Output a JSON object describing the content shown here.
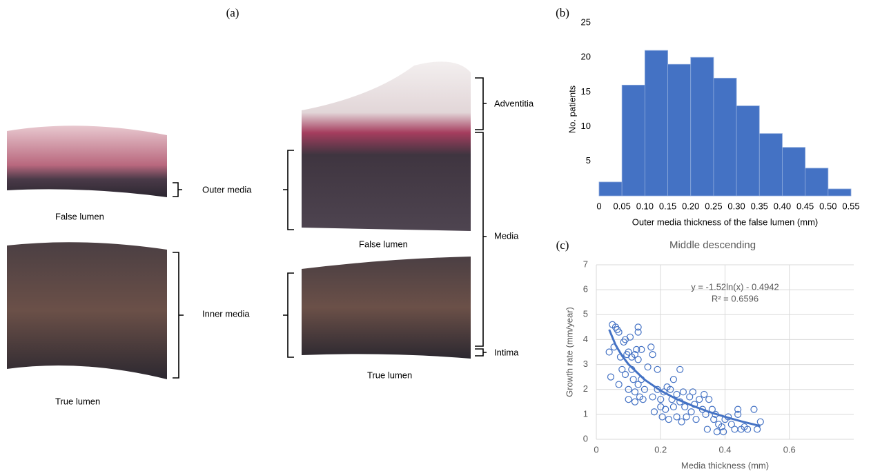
{
  "figure": {
    "panel_a": {
      "label": "(a)",
      "left_top_caption": "False lumen",
      "left_bottom_caption": "True lumen",
      "outer_media": "Outer media",
      "inner_media": "Inner media",
      "adventitia": "Adventitia",
      "media": "Media",
      "intima": "Intima",
      "right_top_caption": "False lumen",
      "right_bottom_caption": "True lumen"
    },
    "panel_b_label": "(b)",
    "panel_c_label": "(c)"
  },
  "chart_data": [
    {
      "type": "histogram",
      "xlabel": "Outer media thickness of the false lumen (mm)",
      "ylabel": "No. patients",
      "bins": [
        0,
        0.05,
        0.1,
        0.15,
        0.2,
        0.25,
        0.3,
        0.35,
        0.4,
        0.45,
        0.5,
        0.55
      ],
      "counts": [
        2,
        16,
        21,
        19,
        20,
        17,
        13,
        9,
        7,
        4,
        1
      ],
      "color": "#4472c4",
      "xlim": [
        0,
        0.55
      ],
      "xticks": [
        0,
        0.05,
        {
          "value": 0.1,
          "label": "0.10"
        },
        0.15,
        {
          "value": 0.2,
          "label": "0.20"
        },
        0.25,
        {
          "value": 0.3,
          "label": "0.30"
        },
        0.35,
        {
          "value": 0.4,
          "label": "0.40"
        },
        0.45,
        {
          "value": 0.5,
          "label": "0.50"
        },
        0.55
      ],
      "ylim": [
        0,
        25
      ],
      "yticks": [
        5,
        10,
        15,
        20,
        25
      ],
      "grid": false
    },
    {
      "type": "scatter",
      "title": "Middle descending",
      "xlabel": "Media thickness (mm)",
      "ylabel": "Growth rate (mm/year)",
      "x": [
        0.04,
        0.045,
        0.05,
        0.055,
        0.06,
        0.065,
        0.07,
        0.07,
        0.075,
        0.08,
        0.085,
        0.09,
        0.09,
        0.095,
        0.1,
        0.1,
        0.1,
        0.105,
        0.11,
        0.11,
        0.115,
        0.12,
        0.12,
        0.12,
        0.125,
        0.13,
        0.13,
        0.13,
        0.13,
        0.135,
        0.14,
        0.14,
        0.145,
        0.15,
        0.16,
        0.17,
        0.175,
        0.175,
        0.18,
        0.19,
        0.19,
        0.2,
        0.2,
        0.205,
        0.21,
        0.215,
        0.22,
        0.225,
        0.23,
        0.235,
        0.24,
        0.24,
        0.25,
        0.25,
        0.26,
        0.26,
        0.265,
        0.27,
        0.275,
        0.28,
        0.29,
        0.295,
        0.3,
        0.305,
        0.31,
        0.32,
        0.33,
        0.335,
        0.34,
        0.345,
        0.35,
        0.36,
        0.365,
        0.37,
        0.375,
        0.38,
        0.39,
        0.395,
        0.4,
        0.41,
        0.42,
        0.43,
        0.44,
        0.44,
        0.45,
        0.46,
        0.47,
        0.49,
        0.5,
        0.51
      ],
      "y": [
        3.5,
        2.5,
        4.6,
        3.7,
        4.5,
        4.4,
        4.3,
        2.2,
        3.3,
        2.8,
        3.9,
        4.0,
        2.6,
        3.4,
        3.5,
        1.6,
        2.0,
        4.1,
        3.3,
        2.8,
        2.4,
        3.4,
        1.9,
        1.5,
        3.6,
        4.5,
        4.3,
        3.2,
        2.2,
        1.7,
        3.6,
        2.4,
        1.6,
        2.0,
        2.9,
        3.7,
        3.4,
        1.7,
        1.1,
        2.8,
        2.0,
        1.6,
        1.3,
        0.9,
        1.9,
        1.2,
        2.1,
        0.8,
        2.0,
        1.6,
        2.4,
        1.3,
        1.8,
        0.9,
        2.8,
        1.5,
        0.7,
        1.9,
        1.3,
        0.9,
        1.7,
        1.1,
        1.9,
        1.4,
        0.8,
        1.6,
        1.2,
        1.8,
        1.0,
        0.4,
        1.6,
        1.2,
        0.8,
        1.0,
        0.3,
        0.6,
        0.5,
        0.3,
        0.8,
        0.9,
        0.6,
        0.4,
        1.2,
        1.0,
        0.4,
        0.5,
        0.4,
        1.2,
        0.4,
        0.7
      ],
      "color": "#4472c4",
      "trendline": {
        "x": [
          0.04,
          0.06,
          0.08,
          0.1,
          0.15,
          0.2,
          0.25,
          0.3,
          0.35,
          0.4,
          0.45,
          0.51
        ],
        "y": [
          4.4,
          3.78,
          3.35,
          3.01,
          2.39,
          1.95,
          1.61,
          1.34,
          1.1,
          0.9,
          0.72,
          0.53
        ]
      },
      "equation": "y = -1.52ln(x) - 0.4942",
      "r_squared": "R² = 0.6596",
      "xlim": [
        0,
        0.8
      ],
      "xticks": [
        0,
        0.2,
        0.4,
        0.6
      ],
      "ylim": [
        0,
        7
      ],
      "yticks": [
        0,
        1,
        2,
        3,
        4,
        5,
        6,
        7
      ],
      "grid": true
    }
  ]
}
